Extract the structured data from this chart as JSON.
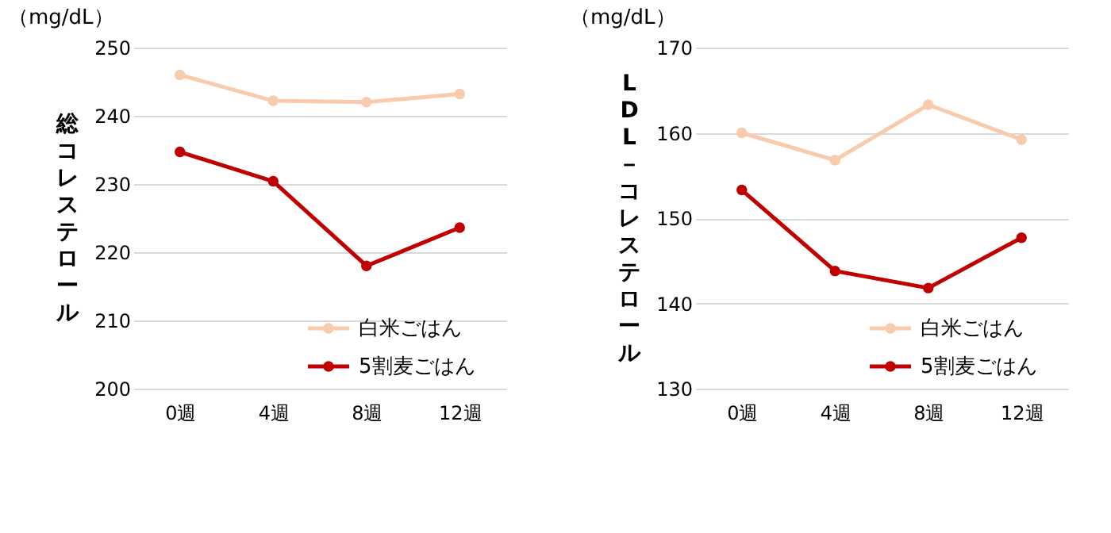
{
  "chart_data": [
    {
      "type": "line",
      "ylabel": "総コレステロール",
      "annotations": [
        "（mg/dL）"
      ],
      "categories": [
        "0週",
        "4週",
        "8週",
        "12週"
      ],
      "ylim": [
        200,
        250
      ],
      "yticks": [
        200,
        210,
        220,
        230,
        240,
        250
      ],
      "grid": "y",
      "legend": "bottom right",
      "marker": "circle",
      "line_style": "solid",
      "series": [
        {
          "name": "白米ごはん",
          "color": "#f8cbad",
          "values": [
            246.0,
            242.2,
            242.0,
            243.2
          ]
        },
        {
          "name": "5割麦ごはん",
          "color": "#c00000",
          "values": [
            234.7,
            230.4,
            218.0,
            223.6
          ]
        }
      ]
    },
    {
      "type": "line",
      "ylabel": "LDL－コレステロール",
      "annotations": [
        "（mg/dL）"
      ],
      "categories": [
        "0週",
        "4週",
        "8週",
        "12週"
      ],
      "ylim": [
        130,
        170
      ],
      "yticks": [
        130,
        140,
        150,
        160,
        170
      ],
      "grid": "y",
      "legend": "bottom right",
      "marker": "circle",
      "line_style": "solid",
      "series": [
        {
          "name": "白米ごはん",
          "color": "#f8cbad",
          "values": [
            160.0,
            156.8,
            163.3,
            159.2
          ]
        },
        {
          "name": "5割麦ごはん",
          "color": "#c00000",
          "values": [
            153.3,
            143.8,
            141.8,
            147.7
          ]
        }
      ]
    }
  ]
}
